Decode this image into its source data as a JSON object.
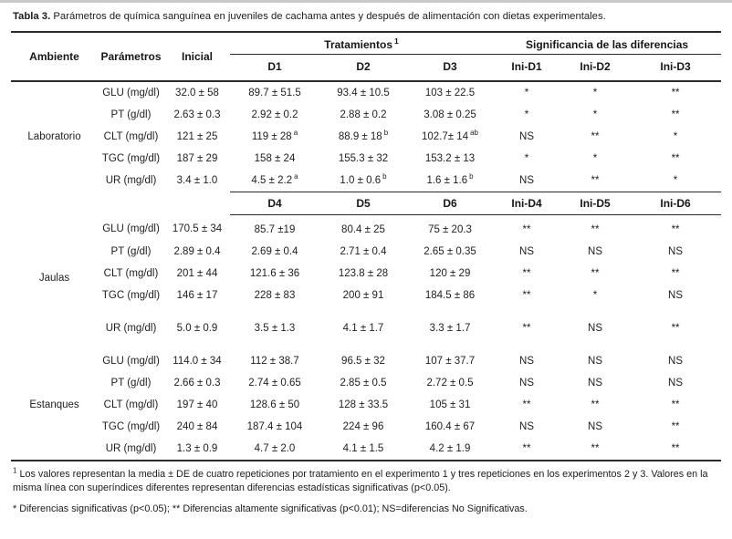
{
  "page": {
    "title_label": "Tabla 3.",
    "title_text": "Parámetros de química sanguínea en juveniles de cachama antes y después de alimentación con dietas experimentales."
  },
  "table": {
    "columns": [
      "Ambiente",
      "Parámetros",
      "Inicial"
    ],
    "group_headers": {
      "treatments": "Tratamientos",
      "treatments_sup": "1",
      "significance": "Significancia de las diferencias"
    },
    "block1_headers": [
      "D1",
      "D2",
      "D3",
      "Ini-D1",
      "Ini-D2",
      "Ini-D3"
    ],
    "block2_headers": [
      "D4",
      "D5",
      "D6",
      "Ini-D4",
      "Ini-D5",
      "Ini-D6"
    ],
    "sections": [
      {
        "ambiente": "Laboratorio",
        "rows": [
          {
            "param": "GLU (mg/dl)",
            "inicial": "32.0 ± 58",
            "treatments": [
              {
                "v": "89.7 ± 51.5",
                "sup": ""
              },
              {
                "v": "93.4 ± 10.5",
                "sup": ""
              },
              {
                "v": "103 ± 22.5",
                "sup": ""
              }
            ],
            "significance": [
              "*",
              "*",
              "**"
            ]
          },
          {
            "param": "PT (g/dl)",
            "inicial": "2.63 ± 0.3",
            "treatments": [
              {
                "v": "2.92 ± 0.2",
                "sup": ""
              },
              {
                "v": "2.88 ± 0.2",
                "sup": ""
              },
              {
                "v": "3.08 ± 0.25",
                "sup": ""
              }
            ],
            "significance": [
              "*",
              "*",
              "**"
            ]
          },
          {
            "param": "CLT (mg/dl)",
            "inicial": "121 ± 25",
            "treatments": [
              {
                "v": "119 ± 28",
                "sup": "a"
              },
              {
                "v": "88.9 ± 18",
                "sup": "b"
              },
              {
                "v": "102.7± 14",
                "sup": "ab"
              }
            ],
            "significance": [
              "NS",
              "**",
              "*"
            ]
          },
          {
            "param": "TGC (mg/dl)",
            "inicial": "187 ± 29",
            "treatments": [
              {
                "v": "158 ± 24",
                "sup": ""
              },
              {
                "v": "155.3 ± 32",
                "sup": ""
              },
              {
                "v": "153.2 ± 13",
                "sup": ""
              }
            ],
            "significance": [
              "*",
              "*",
              "**"
            ]
          },
          {
            "param": "UR (mg/dl)",
            "inicial": "3.4 ± 1.0",
            "treatments": [
              {
                "v": "4.5 ± 2.2",
                "sup": "a"
              },
              {
                "v": "1.0 ± 0.6",
                "sup": "b"
              },
              {
                "v": "1.6 ± 1.6",
                "sup": "b"
              }
            ],
            "significance": [
              "NS",
              "**",
              "*"
            ]
          }
        ]
      },
      {
        "ambiente": "Jaulas",
        "rows": [
          {
            "param": "GLU (mg/dl)",
            "inicial": "170.5 ± 34",
            "treatments": [
              {
                "v": "85.7 ±19",
                "sup": ""
              },
              {
                "v": "80.4 ± 25",
                "sup": ""
              },
              {
                "v": "75 ± 20.3",
                "sup": ""
              }
            ],
            "significance": [
              "**",
              "**",
              "**"
            ]
          },
          {
            "param": "PT (g/dl)",
            "inicial": "2.89 ± 0.4",
            "treatments": [
              {
                "v": "2.69 ± 0.4",
                "sup": ""
              },
              {
                "v": "2.71 ± 0.4",
                "sup": ""
              },
              {
                "v": "2.65 ± 0.35",
                "sup": ""
              }
            ],
            "significance": [
              "NS",
              "NS",
              "NS"
            ]
          },
          {
            "param": "CLT (mg/dl)",
            "inicial": "201 ± 44",
            "treatments": [
              {
                "v": "121.6 ± 36",
                "sup": ""
              },
              {
                "v": "123.8 ± 28",
                "sup": ""
              },
              {
                "v": "120 ± 29",
                "sup": ""
              }
            ],
            "significance": [
              "**",
              "**",
              "**"
            ]
          },
          {
            "param": "TGC (mg/dl)",
            "inicial": "146 ± 17",
            "treatments": [
              {
                "v": "228 ± 83",
                "sup": ""
              },
              {
                "v": "200 ± 91",
                "sup": ""
              },
              {
                "v": "184.5 ± 86",
                "sup": ""
              }
            ],
            "significance": [
              "**",
              "*",
              "NS"
            ]
          },
          {
            "param": "UR (mg/dl)",
            "inicial": "5.0 ± 0.9",
            "treatments": [
              {
                "v": "3.5 ± 1.3",
                "sup": ""
              },
              {
                "v": "4.1 ± 1.7",
                "sup": ""
              },
              {
                "v": "3.3 ± 1.7",
                "sup": ""
              }
            ],
            "significance": [
              "**",
              "NS",
              "**"
            ]
          }
        ]
      },
      {
        "ambiente": "Estanques",
        "rows": [
          {
            "param": "GLU (mg/dl)",
            "inicial": "114.0 ± 34",
            "treatments": [
              {
                "v": "112 ± 38.7",
                "sup": ""
              },
              {
                "v": "96.5 ± 32",
                "sup": ""
              },
              {
                "v": "107 ± 37.7",
                "sup": ""
              }
            ],
            "significance": [
              "NS",
              "NS",
              "NS"
            ]
          },
          {
            "param": "PT (g/dl)",
            "inicial": "2.66 ± 0.3",
            "treatments": [
              {
                "v": "2.74 ± 0.65",
                "sup": ""
              },
              {
                "v": "2.85 ± 0.5",
                "sup": ""
              },
              {
                "v": "2.72 ± 0.5",
                "sup": ""
              }
            ],
            "significance": [
              "NS",
              "NS",
              "NS"
            ]
          },
          {
            "param": "CLT (mg/dl)",
            "inicial": "197 ± 40",
            "treatments": [
              {
                "v": "128.6 ± 50",
                "sup": ""
              },
              {
                "v": "128 ± 33.5",
                "sup": ""
              },
              {
                "v": "105 ± 31",
                "sup": ""
              }
            ],
            "significance": [
              "**",
              "**",
              "**"
            ]
          },
          {
            "param": "TGC (mg/dl)",
            "inicial": "240 ± 84",
            "treatments": [
              {
                "v": "187.4 ± 104",
                "sup": ""
              },
              {
                "v": "224 ± 96",
                "sup": ""
              },
              {
                "v": "160.4 ± 67",
                "sup": ""
              }
            ],
            "significance": [
              "NS",
              "NS",
              "**"
            ]
          },
          {
            "param": "UR (mg/dl)",
            "inicial": "1.3 ± 0.9",
            "treatments": [
              {
                "v": "4.7 ± 2.0",
                "sup": ""
              },
              {
                "v": "4.1 ± 1.5",
                "sup": ""
              },
              {
                "v": "4.2 ± 1.9",
                "sup": ""
              }
            ],
            "significance": [
              "**",
              "**",
              "**"
            ]
          }
        ]
      }
    ]
  },
  "footnotes": [
    {
      "sup": "1",
      "text": "Los valores representan la media ± DE de cuatro repeticiones por tratamiento en el experimento 1 y tres repeticiones en los experimentos 2 y 3. Valores en la misma línea con superíndices diferentes representan diferencias estadísticas significativas (p<0.05)."
    },
    {
      "sup": "",
      "text": "* Diferencias significativas (p<0.05); ** Diferencias altamente significativas (p<0.01); NS=diferencias No Significativas."
    }
  ]
}
